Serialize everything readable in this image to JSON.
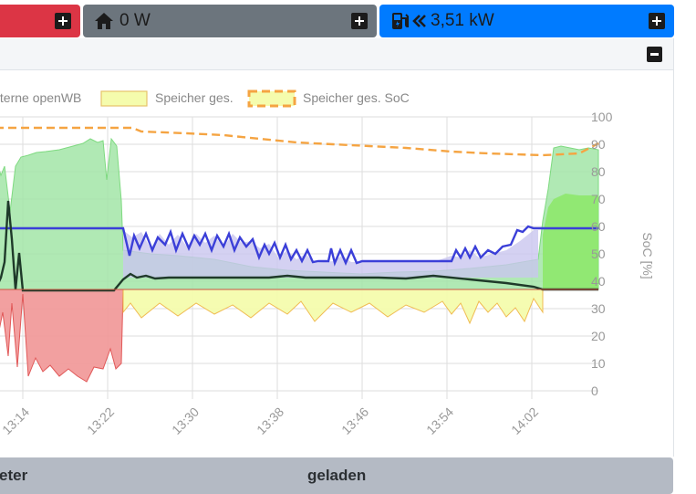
{
  "tiles": {
    "house": {
      "label": "0 W",
      "icon": "home-icon"
    },
    "charge": {
      "label": "3,51 kW",
      "icon": "charging-station-icon",
      "arrow_icon": "double-chevron-left-icon"
    },
    "colors": {
      "red": "#dc3545",
      "grey": "#6c757d",
      "blue": "#007bff"
    }
  },
  "legend": [
    {
      "label": "interne openWB",
      "style": "none"
    },
    {
      "label": "Speicher ges.",
      "style": "fill",
      "color": "#f5fcad"
    },
    {
      "label": "Speicher ges. SoC",
      "style": "dashed",
      "color": "#f5a442"
    }
  ],
  "chart_data": {
    "type": "area",
    "x_tick_labels": [
      "13:14",
      "13:22",
      "13:30",
      "13:38",
      "13:46",
      "13:54",
      "14:02"
    ],
    "y2_ticks": [
      "100",
      "90",
      "80",
      "70",
      "60",
      "50",
      "40",
      "30",
      "20",
      "10",
      "0"
    ],
    "y2label": "SoC [%]",
    "y2lim": [
      0,
      100
    ],
    "grid": true,
    "series": [
      {
        "name": "Speicher ges. SoC",
        "color": "#f5a442",
        "style": "dashed",
        "x": [
          13.12,
          13.2,
          13.3,
          13.38,
          13.46,
          13.54,
          14.0,
          14.06
        ],
        "y": [
          96,
          96,
          94,
          92,
          90,
          88,
          86,
          91
        ]
      }
    ]
  },
  "footer": {
    "col1": "eter",
    "col2": "geladen"
  }
}
